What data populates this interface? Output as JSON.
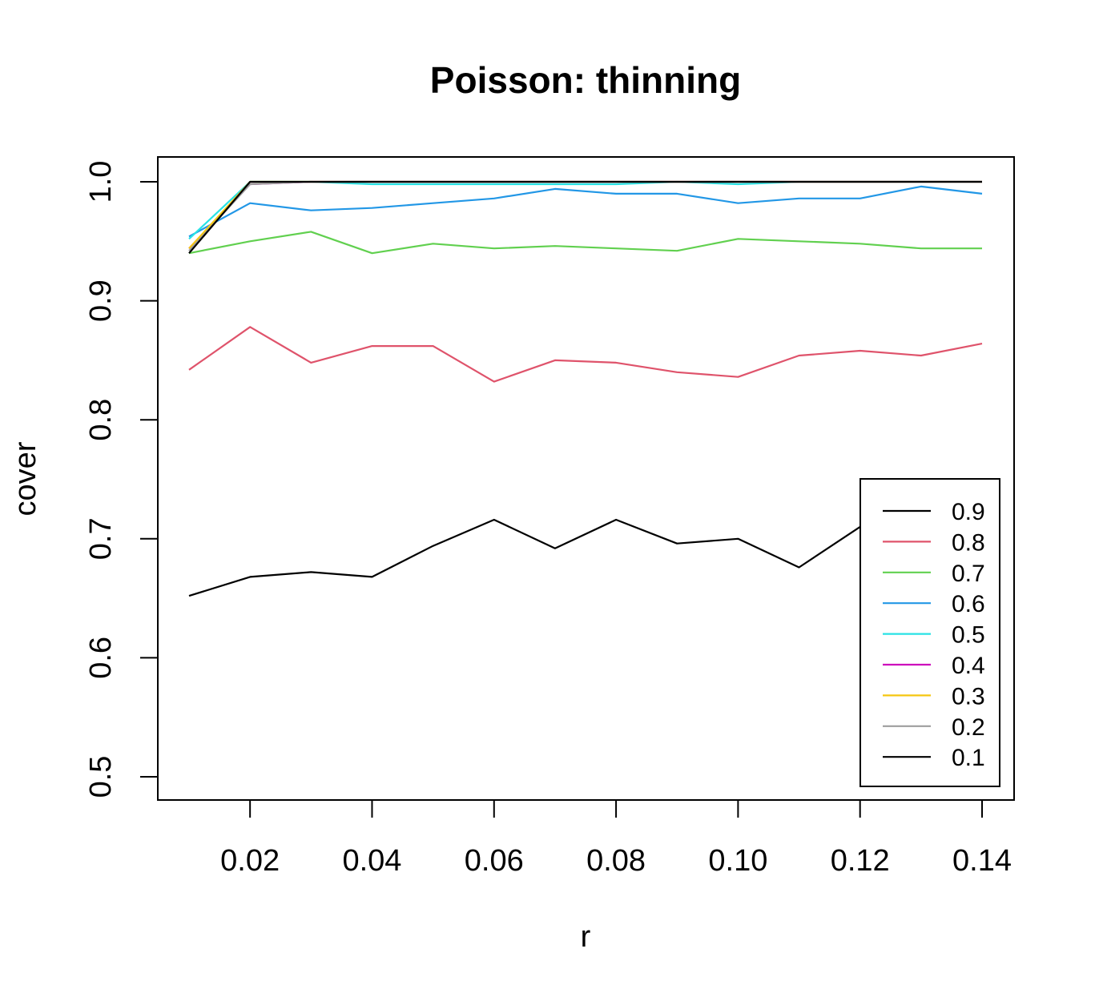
{
  "chart_data": {
    "type": "line",
    "title": "Poisson: thinning",
    "xlabel": "r",
    "ylabel": "cover",
    "xlim": [
      0.01,
      0.14
    ],
    "ylim": [
      0.5,
      1.0
    ],
    "x_ticks": [
      "0.02",
      "0.04",
      "0.06",
      "0.08",
      "0.10",
      "0.12",
      "0.14"
    ],
    "y_ticks": [
      "0.5",
      "0.6",
      "0.7",
      "0.8",
      "0.9",
      "1.0"
    ],
    "grid": false,
    "legend_position": "bottom-right",
    "x": [
      0.01,
      0.02,
      0.03,
      0.04,
      0.05,
      0.06,
      0.07,
      0.08,
      0.09,
      0.1,
      0.11,
      0.12,
      0.13,
      0.14
    ],
    "series": [
      {
        "name": "0.9",
        "color": "#000000",
        "values": [
          0.652,
          0.668,
          0.672,
          0.668,
          0.694,
          0.716,
          0.692,
          0.716,
          0.696,
          0.7,
          0.676,
          0.71,
          0.716,
          0.718
        ]
      },
      {
        "name": "0.8",
        "color": "#DF536B",
        "values": [
          0.842,
          0.878,
          0.848,
          0.862,
          0.862,
          0.832,
          0.85,
          0.848,
          0.84,
          0.836,
          0.854,
          0.858,
          0.854,
          0.864
        ]
      },
      {
        "name": "0.7",
        "color": "#61D04F",
        "values": [
          0.94,
          0.95,
          0.958,
          0.94,
          0.948,
          0.944,
          0.946,
          0.944,
          0.942,
          0.952,
          0.95,
          0.948,
          0.944,
          0.944
        ]
      },
      {
        "name": "0.6",
        "color": "#2297E6",
        "values": [
          0.954,
          0.982,
          0.976,
          0.978,
          0.982,
          0.986,
          0.994,
          0.99,
          0.99,
          0.982,
          0.986,
          0.986,
          0.996,
          0.99
        ]
      },
      {
        "name": "0.5",
        "color": "#28E2E5",
        "values": [
          0.952,
          1.0,
          1.0,
          0.998,
          0.998,
          0.998,
          0.998,
          0.998,
          1.0,
          0.998,
          1.0,
          1.0,
          1.0,
          1.0
        ]
      },
      {
        "name": "0.4",
        "color": "#CD0BBC",
        "values": [
          0.944,
          0.998,
          1.0,
          1.0,
          1.0,
          1.0,
          1.0,
          1.0,
          1.0,
          1.0,
          1.0,
          1.0,
          1.0,
          1.0
        ]
      },
      {
        "name": "0.3",
        "color": "#F5C710",
        "values": [
          0.944,
          1.0,
          1.0,
          1.0,
          1.0,
          1.0,
          1.0,
          1.0,
          1.0,
          1.0,
          1.0,
          1.0,
          1.0,
          1.0
        ]
      },
      {
        "name": "0.2",
        "color": "#9E9E9E",
        "values": [
          0.942,
          0.998,
          1.0,
          1.0,
          1.0,
          1.0,
          1.0,
          1.0,
          1.0,
          1.0,
          1.0,
          1.0,
          1.0,
          1.0
        ]
      },
      {
        "name": "0.1",
        "color": "#000000",
        "values": [
          0.94,
          1.0,
          1.0,
          1.0,
          1.0,
          1.0,
          1.0,
          1.0,
          1.0,
          1.0,
          1.0,
          1.0,
          1.0,
          1.0
        ]
      }
    ]
  }
}
